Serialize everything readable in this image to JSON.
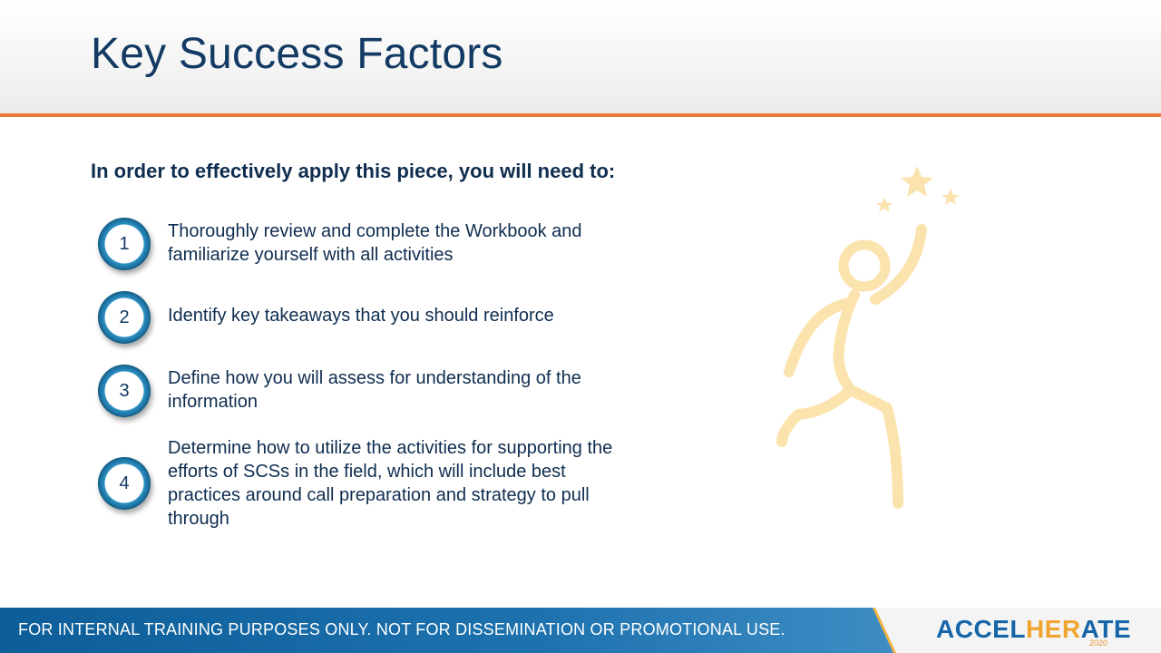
{
  "slide": {
    "title": "Key Success Factors",
    "intro": "In order to effectively apply this piece, you will need to:",
    "steps": [
      {
        "number": "1",
        "lines": [
          "Thoroughly review and complete the Workbook and",
          "familiarize yourself with all activities"
        ]
      },
      {
        "number": "2",
        "lines": [
          "Identify key takeaways that you should reinforce"
        ]
      },
      {
        "number": "3",
        "lines": [
          "Define how you will assess for understanding of the",
          "information"
        ]
      },
      {
        "number": "4",
        "lines": [
          "Determine how to utilize the activities for supporting the",
          "efforts of SCSs in the field, which will include best",
          "practices around call preparation and strategy to pull",
          "through"
        ]
      }
    ]
  },
  "footer": {
    "disclaimer": "FOR INTERNAL TRAINING PURPOSES ONLY. NOT FOR DISSEMINATION OR PROMOTIONAL USE.",
    "brand_part1": "ACCEL",
    "brand_part2": "HER",
    "brand_part3": "ATE",
    "brand_year": "2020"
  },
  "illustration": {
    "icon": "person-reaching-stars-icon",
    "color": "#fbe3ae"
  },
  "colors": {
    "title": "#123a63",
    "accent_rule": "#ea7a3c",
    "footer_blue": "#0d5d98",
    "footer_accent": "#f0b13c"
  }
}
